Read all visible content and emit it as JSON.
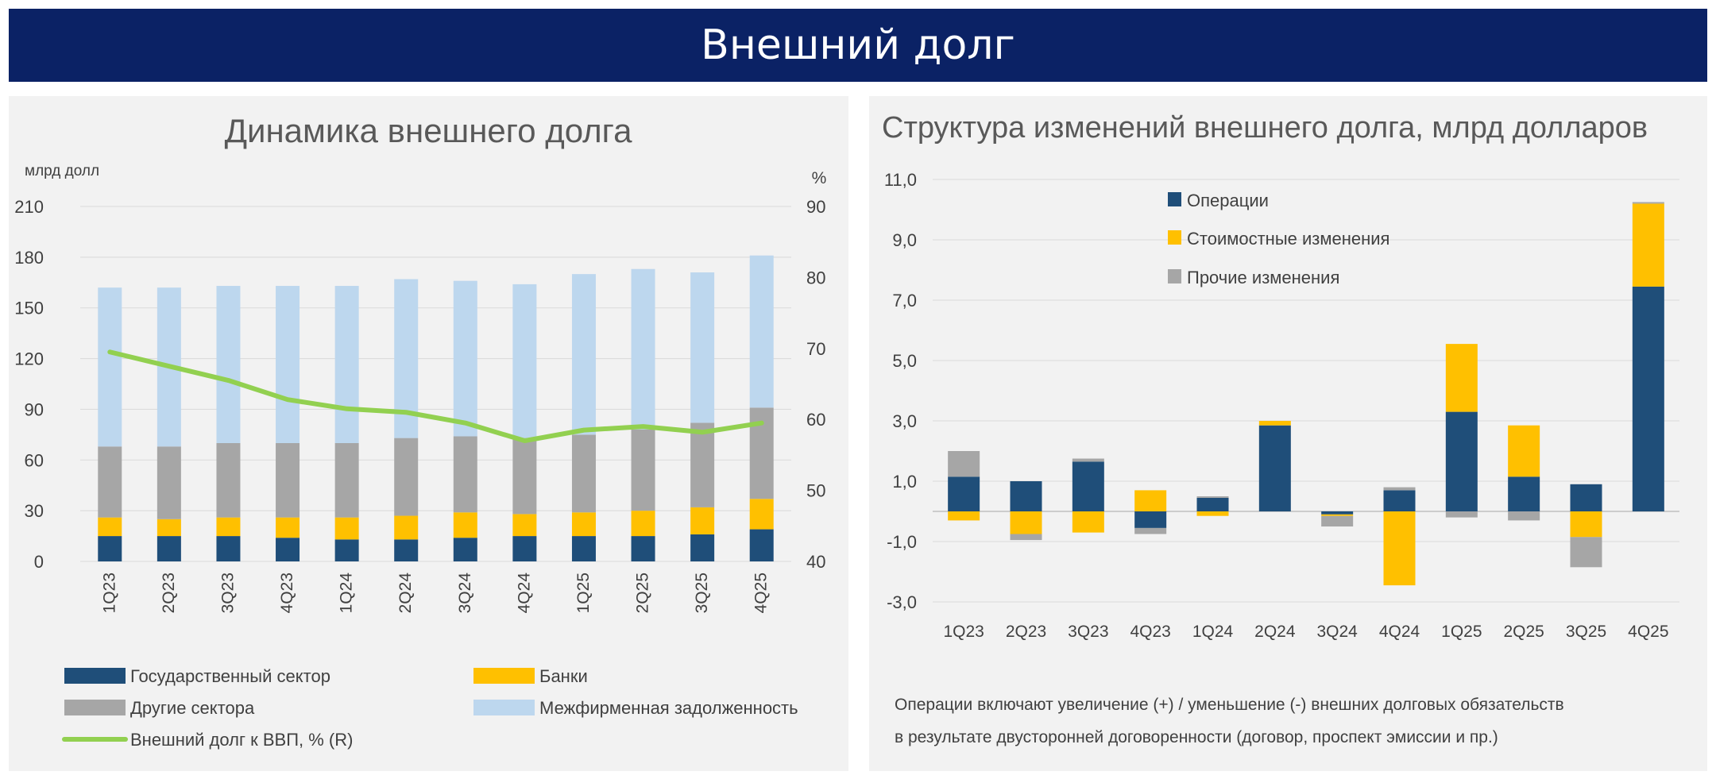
{
  "header": {
    "title": "Внешний долг"
  },
  "colors": {
    "banner_bg": "#0b2265",
    "navy": "#1f4e79",
    "yellow": "#ffc000",
    "gray": "#a6a6a6",
    "light_blue": "#bdd7ee",
    "green": "#92d050"
  },
  "chart_data": [
    {
      "type": "bar",
      "stacked": true,
      "title": "Динамика внешнего долга",
      "ylabel": "млрд долл",
      "y2label": "%",
      "ylim": [
        0,
        210
      ],
      "yticks": [
        0,
        30,
        60,
        90,
        120,
        150,
        180,
        210
      ],
      "y2lim": [
        40,
        90
      ],
      "y2ticks": [
        40,
        50,
        60,
        70,
        80,
        90
      ],
      "grid": true,
      "categories": [
        "1Q23",
        "2Q23",
        "3Q23",
        "4Q23",
        "1Q24",
        "2Q24",
        "3Q24",
        "4Q24",
        "1Q25",
        "2Q25",
        "3Q25",
        "4Q25"
      ],
      "series": [
        {
          "name": "Государственный сектор",
          "color": "#1f4e79",
          "values": [
            15,
            15,
            15,
            14,
            13,
            13,
            14,
            15,
            15,
            15,
            16,
            19
          ]
        },
        {
          "name": "Банки",
          "color": "#ffc000",
          "values": [
            11,
            10,
            11,
            12,
            13,
            14,
            15,
            13,
            14,
            15,
            16,
            18
          ]
        },
        {
          "name": "Другие сектора",
          "color": "#a6a6a6",
          "values": [
            42,
            43,
            44,
            44,
            44,
            46,
            45,
            45,
            46,
            48,
            50,
            54
          ]
        },
        {
          "name": "Межфирменная задолженность",
          "color": "#bdd7ee",
          "values": [
            94,
            94,
            93,
            93,
            93,
            94,
            92,
            91,
            95,
            95,
            89,
            90
          ]
        }
      ],
      "line": {
        "name": "Внешний долг к ВВП, % (R)",
        "color": "#92d050",
        "axis": "right",
        "values": [
          69.5,
          67.5,
          65.5,
          62.8,
          61.5,
          61.0,
          59.5,
          57.0,
          58.5,
          59.0,
          58.2,
          59.5
        ]
      },
      "legend": {
        "placement": "bottom",
        "items": [
          {
            "label": "Государственный сектор",
            "color": "#1f4e79",
            "kind": "box"
          },
          {
            "label": "Банки",
            "color": "#ffc000",
            "kind": "box"
          },
          {
            "label": "Другие сектора",
            "color": "#a6a6a6",
            "kind": "box"
          },
          {
            "label": "Межфирменная задолженность",
            "color": "#bdd7ee",
            "kind": "box"
          },
          {
            "label": "Внешний долг к ВВП, % (R)",
            "color": "#92d050",
            "kind": "line"
          }
        ]
      }
    },
    {
      "type": "bar",
      "stacked": true,
      "title": "Структура изменений внешнего долга, млрд долларов",
      "ylim": [
        -3,
        11
      ],
      "yticks": [
        "11,0",
        "9,0",
        "7,0",
        "5,0",
        "3,0",
        "1,0",
        "-1,0",
        "-3,0"
      ],
      "ytick_values": [
        11,
        9,
        7,
        5,
        3,
        1,
        -1,
        -3
      ],
      "grid": true,
      "categories": [
        "1Q23",
        "2Q23",
        "3Q23",
        "4Q23",
        "1Q24",
        "2Q24",
        "3Q24",
        "4Q24",
        "1Q25",
        "2Q25",
        "3Q25",
        "4Q25"
      ],
      "series": [
        {
          "name": "Операции",
          "color": "#1f4e79",
          "values": [
            1.15,
            1.0,
            1.65,
            -0.55,
            0.45,
            2.85,
            -0.1,
            0.7,
            3.3,
            1.15,
            0.9,
            7.45
          ]
        },
        {
          "name": "Стоимостные изменения",
          "color": "#ffc000",
          "values": [
            -0.3,
            -0.75,
            -0.7,
            0.7,
            -0.15,
            0.15,
            -0.05,
            -2.45,
            2.25,
            1.7,
            -0.85,
            2.75
          ]
        },
        {
          "name": "Прочие изменения",
          "color": "#a6a6a6",
          "values": [
            0.85,
            -0.2,
            0.1,
            -0.2,
            0.05,
            0.0,
            -0.35,
            0.1,
            -0.2,
            -0.3,
            -1.0,
            0.05
          ]
        }
      ],
      "legend": {
        "placement": "top-left",
        "items": [
          "Операции",
          "Стоимостные изменения",
          "Прочие изменения"
        ]
      },
      "note_lines": [
        "Операции включают увеличение (+) / уменьшение (-) внешних долговых обязательств",
        "в результате двусторонней договоренности (договор, проспект эмиссии и пр.)"
      ]
    }
  ]
}
